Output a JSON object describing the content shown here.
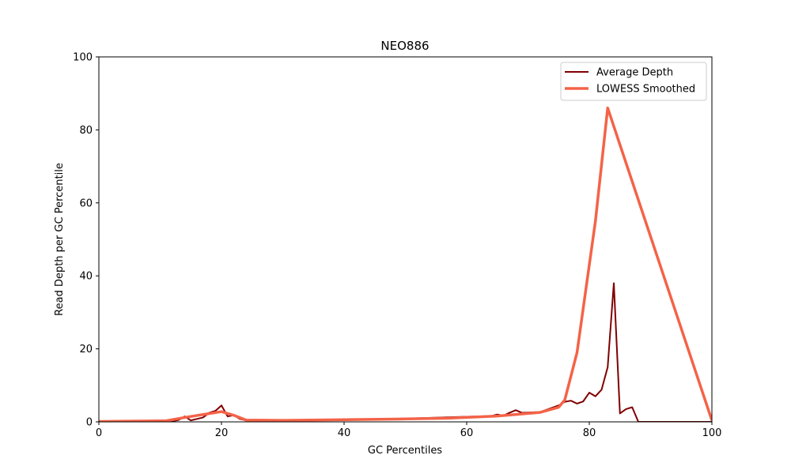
{
  "chart_data": {
    "type": "line",
    "title": "NEO886",
    "xlabel": "GC Percentiles",
    "ylabel": "Read Depth per GC Percentile",
    "xlim": [
      0,
      100
    ],
    "ylim": [
      0,
      100
    ],
    "xticks": [
      0,
      20,
      40,
      60,
      80,
      100
    ],
    "yticks": [
      0,
      20,
      40,
      60,
      80,
      100
    ],
    "grid": false,
    "legend_position": "top-right",
    "series": [
      {
        "name": "Average Depth",
        "color": "#800000",
        "points": [
          [
            0,
            0
          ],
          [
            11,
            0
          ],
          [
            12,
            0.2
          ],
          [
            13,
            0.5
          ],
          [
            14,
            1.5
          ],
          [
            15,
            0.4
          ],
          [
            16,
            0.8
          ],
          [
            17,
            1.2
          ],
          [
            18,
            2.5
          ],
          [
            19,
            3.0
          ],
          [
            20,
            4.5
          ],
          [
            21,
            1.5
          ],
          [
            22,
            1.8
          ],
          [
            23,
            0.8
          ],
          [
            24,
            0.4
          ],
          [
            30,
            0.4
          ],
          [
            40,
            0.6
          ],
          [
            50,
            0.9
          ],
          [
            60,
            1.4
          ],
          [
            64,
            1.6
          ],
          [
            65,
            2.0
          ],
          [
            66,
            1.7
          ],
          [
            67,
            2.5
          ],
          [
            68,
            3.2
          ],
          [
            69,
            2.5
          ],
          [
            72,
            2.7
          ],
          [
            75,
            4.5
          ],
          [
            76,
            5.5
          ],
          [
            77,
            5.8
          ],
          [
            78,
            5.0
          ],
          [
            79,
            5.6
          ],
          [
            80,
            8.0
          ],
          [
            81,
            7.0
          ],
          [
            82,
            8.8
          ],
          [
            83,
            15.0
          ],
          [
            84,
            38.0
          ],
          [
            85,
            2.3
          ],
          [
            86,
            3.5
          ],
          [
            87,
            4.0
          ],
          [
            88,
            0
          ],
          [
            100,
            0
          ]
        ]
      },
      {
        "name": "LOWESS Smoothed",
        "color": "#f46348",
        "points": [
          [
            0,
            0.1
          ],
          [
            11,
            0.3
          ],
          [
            14,
            1.2
          ],
          [
            17,
            2.0
          ],
          [
            20,
            2.8
          ],
          [
            22,
            1.8
          ],
          [
            24,
            0.5
          ],
          [
            30,
            0.4
          ],
          [
            40,
            0.6
          ],
          [
            50,
            0.8
          ],
          [
            57,
            1.0
          ],
          [
            65,
            1.6
          ],
          [
            72,
            2.6
          ],
          [
            75,
            4.0
          ],
          [
            76,
            6.0
          ],
          [
            78,
            19.0
          ],
          [
            81,
            55.0
          ],
          [
            83,
            86.0
          ],
          [
            100,
            0.4
          ]
        ]
      }
    ]
  }
}
